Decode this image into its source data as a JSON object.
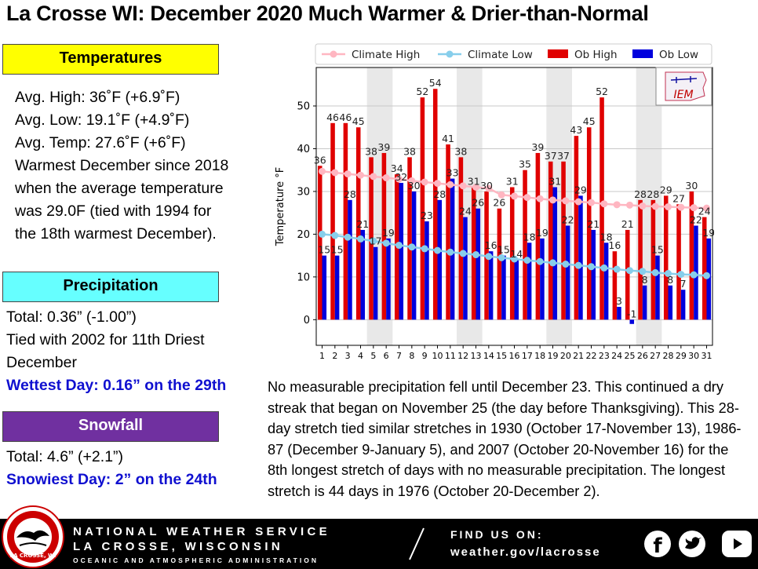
{
  "title": "La Crosse WI:  December 2020 Much Warmer & Drier-than-Normal",
  "temperatures": {
    "header": "Temperatures",
    "lines": [
      "Avg. High:  36˚F (+6.9˚F)",
      "Avg. Low:  19.1˚F (+4.9˚F)",
      "Avg. Temp:  27.6˚F (+6˚F)",
      "Warmest December since 2018",
      "when the average temperature",
      "was 29.0F (tied with 1994 for",
      "the 18th warmest December)."
    ]
  },
  "precipitation": {
    "header": "Precipitation",
    "lines": [
      "Total:  0.36” (-1.00”)",
      "Tied with 2002 for 11th Driest",
      "December"
    ],
    "wettest": "Wettest Day: 0.16” on the 29th"
  },
  "snowfall": {
    "header": "Snowfall",
    "total": "Total:  4.6” (+2.1”)",
    "snowiest": "Snowiest Day: 2” on the 24th"
  },
  "paragraph": "No measurable precipitation fell until December 23.  This continued a dry streak that began on November 25 (the day before Thanksgiving). This 28-day stretch tied similar stretches in 1930 (October 17-November 13), 1986-87 (December 9-January 5), and 2007 (October 20-November 16) for the 8th longest stretch of days with no measurable precipitation.  The longest stretch is 44 days in 1976 (October 20-December 2).",
  "footer": {
    "line1": "NATIONAL WEATHER SERVICE",
    "line2": "LA CROSSE, WISCONSIN",
    "line3": "OCEANIC AND ATMOSPHERIC ADMINISTRATION",
    "find": "FIND US ON:",
    "url": "weather.gov/lacrosse",
    "seal_text": "LA CROSSE, WI",
    "seal_arc": "NATIONAL WEATHER SERVICE"
  },
  "chart_data": {
    "type": "bar",
    "ylabel": "Temperature °F",
    "ylim": [
      -6,
      59
    ],
    "yticks": [
      0,
      10,
      20,
      30,
      40,
      50
    ],
    "x": [
      1,
      2,
      3,
      4,
      5,
      6,
      7,
      8,
      9,
      10,
      11,
      12,
      13,
      14,
      15,
      16,
      17,
      18,
      19,
      20,
      21,
      22,
      23,
      24,
      25,
      26,
      27,
      28,
      29,
      30,
      31
    ],
    "grid": true,
    "weekend_shading": [
      [
        4.5,
        6.5
      ],
      [
        11.5,
        13.5
      ],
      [
        18.5,
        20.5
      ],
      [
        25.5,
        27.5
      ]
    ],
    "legend_position": "top",
    "logo_text": "IEM",
    "series": [
      {
        "name": "Climate High",
        "kind": "line",
        "color": "#ffb6c1",
        "values": [
          34.7,
          34.4,
          34.1,
          33.8,
          33.5,
          33.2,
          32.9,
          32.5,
          32.2,
          31.9,
          31.6,
          31.3,
          31.0,
          30.7,
          29.2,
          28.9,
          28.6,
          28.3,
          28.0,
          27.8,
          27.6,
          27.4,
          27.1,
          26.9,
          26.8,
          26.6,
          26.5,
          26.4,
          26.3,
          26.2,
          26.1
        ]
      },
      {
        "name": "Climate Low",
        "kind": "line",
        "color": "#87ceeb",
        "values": [
          20.0,
          19.7,
          19.3,
          18.9,
          18.4,
          17.9,
          17.4,
          17.0,
          16.6,
          16.2,
          15.8,
          15.5,
          15.2,
          14.8,
          14.5,
          14.2,
          13.9,
          13.6,
          13.3,
          13.0,
          12.7,
          12.4,
          12.1,
          11.8,
          11.5,
          11.3,
          11.0,
          10.8,
          10.6,
          10.5,
          10.3
        ]
      },
      {
        "name": "Ob High",
        "kind": "bar",
        "color": "#e00000",
        "values": [
          36,
          46,
          46,
          45,
          38,
          39,
          34,
          38,
          52,
          54,
          41,
          38,
          31,
          30,
          26,
          31,
          35,
          39,
          37,
          37,
          43,
          45,
          52,
          16,
          21,
          28,
          28,
          29,
          27,
          30,
          24
        ]
      },
      {
        "name": "Ob Low",
        "kind": "bar",
        "color": "#0000dd",
        "values": [
          15,
          15,
          28,
          21,
          17,
          19,
          32,
          30,
          23,
          28,
          33,
          24,
          26,
          16,
          15,
          14,
          18,
          19,
          31,
          22,
          29,
          21,
          18,
          3,
          -1,
          8,
          15,
          8,
          7,
          22,
          19
        ]
      }
    ]
  }
}
